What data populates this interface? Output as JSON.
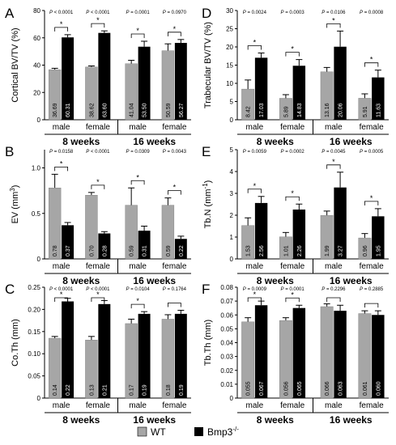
{
  "legend": {
    "items": [
      {
        "label": "WT",
        "color": "#a6a6a6"
      },
      {
        "label": "Bmp3",
        "superscript": "-/-",
        "color": "#000000"
      }
    ]
  },
  "chart_data": [
    {
      "panel": "A",
      "type": "bar",
      "ylabel": "Cortical BV/TV (%)",
      "ylim": [
        0,
        80
      ],
      "yticks": [
        "0",
        "20",
        "40",
        "60",
        "80"
      ],
      "tickvals": [
        0,
        20,
        40,
        60,
        80
      ],
      "categories": [
        "male",
        "female",
        "male",
        "female"
      ],
      "groups": [
        "8 weeks",
        "16 weeks"
      ],
      "series": [
        {
          "name": "WT",
          "values": [
            36.69,
            38.62,
            41.04,
            50.59
          ],
          "labels": [
            "36.69",
            "38.62",
            "41.04",
            "50.59"
          ],
          "errors": [
            1,
            0.8,
            2.5,
            5
          ]
        },
        {
          "name": "Bmp3-/-",
          "values": [
            60.31,
            63.6,
            53.5,
            56.27
          ],
          "labels": [
            "60.31",
            "63.60",
            "53.50",
            "56.27"
          ],
          "errors": [
            2,
            1.5,
            4,
            2.5
          ]
        }
      ],
      "pvalues": [
        "P < 0.0001",
        "P < 0.0001",
        "P = 0.0001",
        "P = 0.0970"
      ],
      "sig": [
        "*",
        "*",
        "*",
        "*"
      ]
    },
    {
      "panel": "B",
      "type": "bar",
      "ylabel": "EV (mm",
      "ylabel_sup": "3",
      "ylabel_end": ")",
      "ylim": [
        0,
        1.2
      ],
      "yticks": [
        "0",
        "0.5",
        "1.0"
      ],
      "tickvals": [
        0,
        0.5,
        1.0
      ],
      "categories": [
        "male",
        "female",
        "male",
        "female"
      ],
      "groups": [
        "8 weeks",
        "16 weeks"
      ],
      "series": [
        {
          "name": "WT",
          "values": [
            0.78,
            0.7,
            0.59,
            0.59
          ],
          "labels": [
            "0.78",
            "0.70",
            "0.59",
            "0.59"
          ],
          "errors": [
            0.15,
            0.03,
            0.19,
            0.08
          ]
        },
        {
          "name": "Bmp3-/-",
          "values": [
            0.37,
            0.28,
            0.31,
            0.22
          ],
          "labels": [
            "0.37",
            "0.28",
            "0.31",
            "0.22"
          ],
          "errors": [
            0.03,
            0.02,
            0.05,
            0.03
          ]
        }
      ],
      "pvalues": [
        "P = 0.0158",
        "P < 0.0001",
        "P = 0.0309",
        "P = 0.0043"
      ],
      "sig": [
        "*",
        "*",
        "*",
        "*"
      ]
    },
    {
      "panel": "C",
      "type": "bar",
      "ylabel": "Co.Th (mm)",
      "ylim": [
        0,
        0.25
      ],
      "yticks": [
        "0",
        "0.05",
        "0.10",
        "0.15",
        "0.20",
        "0.25"
      ],
      "tickvals": [
        0,
        0.05,
        0.1,
        0.15,
        0.2,
        0.25
      ],
      "categories": [
        "male",
        "female",
        "male",
        "female"
      ],
      "groups": [
        "8 weeks",
        "16 weeks"
      ],
      "series": [
        {
          "name": "WT",
          "values": [
            0.135,
            0.131,
            0.168,
            0.178
          ],
          "labels": [
            "0.14",
            "0.13",
            "0.17",
            "0.18"
          ],
          "errors": [
            0.004,
            0.008,
            0.01,
            0.01
          ]
        },
        {
          "name": "Bmp3-/-",
          "values": [
            0.218,
            0.212,
            0.19,
            0.19
          ],
          "labels": [
            "0.22",
            "0.21",
            "0.19",
            "0.19"
          ],
          "errors": [
            0.007,
            0.008,
            0.005,
            0.008
          ]
        }
      ],
      "pvalues": [
        "P < 0.0001",
        "P < 0.0001",
        "P = 0.0104",
        "P = 0.1764"
      ],
      "sig": [
        "*",
        "*",
        "*",
        ""
      ]
    },
    {
      "panel": "D",
      "type": "bar",
      "ylabel": "Trabecular BV/TV (%)",
      "ylim": [
        0,
        30
      ],
      "yticks": [
        "0",
        "5",
        "10",
        "15",
        "20",
        "25",
        "30"
      ],
      "tickvals": [
        0,
        5,
        10,
        15,
        20,
        25,
        30
      ],
      "categories": [
        "male",
        "female",
        "male",
        "female"
      ],
      "groups": [
        "8 weeks",
        "16 weeks"
      ],
      "series": [
        {
          "name": "WT",
          "values": [
            8.42,
            5.89,
            13.16,
            5.91
          ],
          "labels": [
            "8.42",
            "5.89",
            "13.16",
            "5.91"
          ],
          "errors": [
            2.5,
            1,
            1.2,
            1.2
          ]
        },
        {
          "name": "Bmp3-/-",
          "values": [
            17.03,
            14.83,
            20.06,
            11.63
          ],
          "labels": [
            "17.03",
            "14.83",
            "20.06",
            "11.63"
          ],
          "errors": [
            1.3,
            1.7,
            4.3,
            2
          ]
        }
      ],
      "pvalues": [
        "P = 0.0024",
        "P = 0.0003",
        "P = 0.0106",
        "P = 0.0008"
      ],
      "sig": [
        "*",
        "*",
        "*",
        "*"
      ]
    },
    {
      "panel": "E",
      "type": "bar",
      "ylabel": "Tb.N (mm",
      "ylabel_sup": "-1",
      "ylabel_end": ")",
      "ylim": [
        0,
        5
      ],
      "yticks": [
        "0",
        "1",
        "2",
        "3",
        "4",
        "5"
      ],
      "tickvals": [
        0,
        1,
        2,
        3,
        4,
        5
      ],
      "categories": [
        "male",
        "female",
        "male",
        "female"
      ],
      "groups": [
        "8 weeks",
        "16 weeks"
      ],
      "series": [
        {
          "name": "WT",
          "values": [
            1.53,
            1.01,
            1.99,
            0.96
          ],
          "labels": [
            "1.53",
            "1.01",
            "1.99",
            "0.96"
          ],
          "errors": [
            0.35,
            0.2,
            0.2,
            0.2
          ]
        },
        {
          "name": "Bmp3-/-",
          "values": [
            2.56,
            2.26,
            3.27,
            1.95
          ],
          "labels": [
            "2.56",
            "2.26",
            "3.27",
            "1.95"
          ],
          "errors": [
            0.3,
            0.25,
            0.7,
            0.35
          ]
        }
      ],
      "pvalues": [
        "P = 0.0059",
        "P = 0.0002",
        "P = 0.0045",
        "P = 0.0005"
      ],
      "sig": [
        "*",
        "*",
        "*",
        "*"
      ]
    },
    {
      "panel": "F",
      "type": "bar",
      "ylabel": "Tb.Th (mm)",
      "ylim": [
        0,
        0.08
      ],
      "yticks": [
        "0",
        "0.01",
        "0.02",
        "0.03",
        "0.04",
        "0.05",
        "0.06",
        "0.07",
        "0.08"
      ],
      "tickvals": [
        0,
        0.01,
        0.02,
        0.03,
        0.04,
        0.05,
        0.06,
        0.07,
        0.08
      ],
      "categories": [
        "male",
        "female",
        "male",
        "female"
      ],
      "groups": [
        "8 weeks",
        "16 weeks"
      ],
      "series": [
        {
          "name": "WT",
          "values": [
            0.055,
            0.056,
            0.066,
            0.061
          ],
          "labels": [
            "0.055",
            "0.056",
            "0.066",
            "0.061"
          ],
          "errors": [
            0.003,
            0.002,
            0.002,
            0.002
          ]
        },
        {
          "name": "Bmp3-/-",
          "values": [
            0.067,
            0.065,
            0.063,
            0.06
          ],
          "labels": [
            "0.067",
            "0.065",
            "0.063",
            "0.060"
          ],
          "errors": [
            0.003,
            0.002,
            0.004,
            0.003
          ]
        }
      ],
      "pvalues": [
        "P = 0.0009",
        "P = 0.0001",
        "P = 0.2296",
        "P = 0.2885"
      ],
      "sig": [
        "*",
        "*",
        "",
        ""
      ]
    }
  ]
}
